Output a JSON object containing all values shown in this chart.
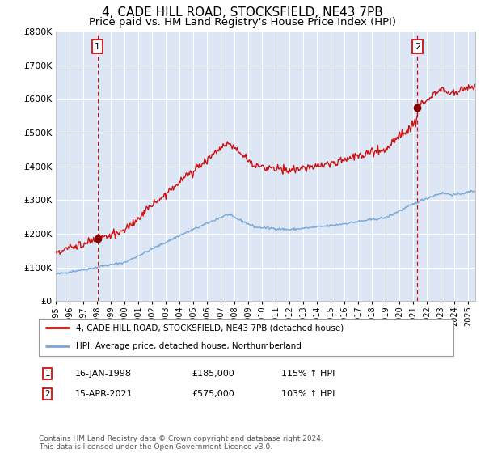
{
  "title": "4, CADE HILL ROAD, STOCKSFIELD, NE43 7PB",
  "subtitle": "Price paid vs. HM Land Registry's House Price Index (HPI)",
  "legend_line1": "4, CADE HILL ROAD, STOCKSFIELD, NE43 7PB (detached house)",
  "legend_line2": "HPI: Average price, detached house, Northumberland",
  "footnote": "Contains HM Land Registry data © Crown copyright and database right 2024.\nThis data is licensed under the Open Government Licence v3.0.",
  "sale1_label": "16-JAN-1998",
  "sale1_price": "£185,000",
  "sale1_hpi": "115% ↑ HPI",
  "sale1_year": 1998.04,
  "sale1_value": 185000,
  "sale2_label": "15-APR-2021",
  "sale2_price": "£575,000",
  "sale2_hpi": "103% ↑ HPI",
  "sale2_year": 2021.29,
  "sale2_value": 575000,
  "hpi_color": "#7aa8d4",
  "price_color": "#cc1111",
  "marker_color": "#880000",
  "vline_color": "#cc1111",
  "bg_color": "#ffffff",
  "plot_bg": "#dce6f5",
  "ylim": [
    0,
    800000
  ],
  "xlim_start": 1995,
  "xlim_end": 2025.5,
  "ytick_step": 100000,
  "grid_color": "#ffffff",
  "title_fontsize": 11,
  "subtitle_fontsize": 9.5
}
